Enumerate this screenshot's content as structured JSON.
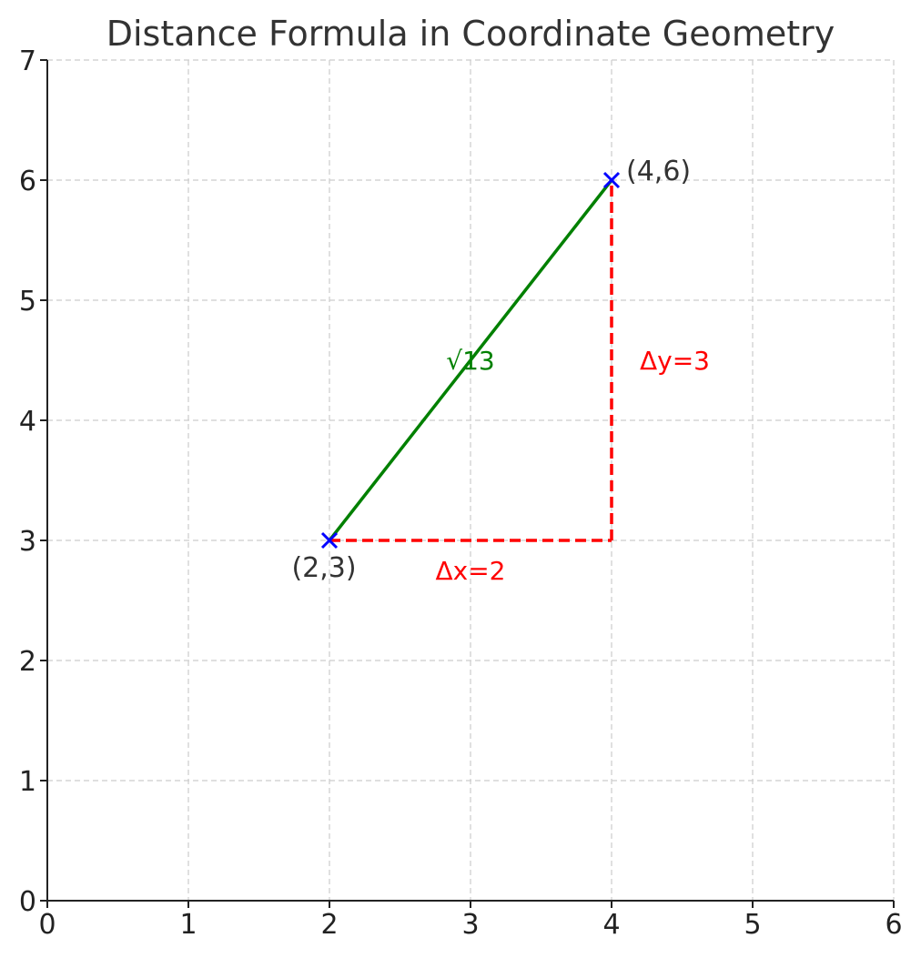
{
  "chart_data": {
    "type": "line",
    "title": "Distance Formula in Coordinate Geometry",
    "xlabel": "",
    "ylabel": "",
    "xlim": [
      0,
      6
    ],
    "ylim": [
      0,
      7
    ],
    "xticks": [
      "0",
      "1",
      "2",
      "3",
      "4",
      "5",
      "6"
    ],
    "yticks": [
      "0",
      "1",
      "2",
      "3",
      "4",
      "5",
      "6",
      "7"
    ],
    "grid": true,
    "points": [
      {
        "x": 2,
        "y": 3,
        "label": "(2,3)",
        "marker": "x",
        "color": "#0000ff"
      },
      {
        "x": 4,
        "y": 6,
        "label": "(4,6)",
        "marker": "x",
        "color": "#0000ff"
      }
    ],
    "series": [
      {
        "x": [
          2,
          4
        ],
        "y": [
          3,
          6
        ],
        "style": "solid",
        "color": "#008000"
      },
      {
        "x": [
          2,
          4
        ],
        "y": [
          3,
          3
        ],
        "style": "dashed",
        "color": "#ff0000"
      },
      {
        "x": [
          4,
          4
        ],
        "y": [
          3,
          6
        ],
        "style": "dashed",
        "color": "#ff0000"
      }
    ],
    "annotations": [
      {
        "text": "√13",
        "x": 3,
        "y": 4.5,
        "color": "#008000"
      },
      {
        "text": "Δx=2",
        "x": 3,
        "y": 2.75,
        "color": "#ff0000"
      },
      {
        "text": "Δy=3",
        "x": 4.2,
        "y": 4.5,
        "color": "#ff0000"
      }
    ]
  }
}
